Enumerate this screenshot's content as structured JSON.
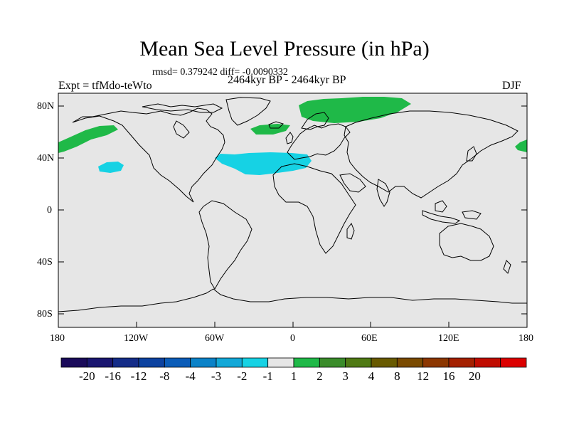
{
  "title": "Mean Sea Level Pressure (in hPa)",
  "subtitle": "rmsd= 0.379242 diff= -0.0090332",
  "left_label": "Expt = tfMdo-teWto",
  "center_label": "2464kyr BP - 2464kyr BP",
  "right_label": "DJF",
  "lat_ticks": [
    "80N",
    "40N",
    "0",
    "40S",
    "80S"
  ],
  "lon_ticks": [
    "180",
    "120W",
    "60W",
    "0",
    "60E",
    "120E",
    "180"
  ],
  "colorbar": {
    "colors": [
      "#1a0a5a",
      "#1a1670",
      "#142c88",
      "#0c42a0",
      "#0a5cb8",
      "#0a82c8",
      "#12a8d8",
      "#16d2e4",
      "#e6e6e6",
      "#1fb948",
      "#3a8c2a",
      "#4f7a14",
      "#685a00",
      "#7a4a00",
      "#8c3600",
      "#a42000",
      "#c00c00",
      "#dc0000"
    ],
    "labels": [
      "-20",
      "-16",
      "-12",
      "-8",
      "-4",
      "-3",
      "-2",
      "-1",
      "1",
      "2",
      "3",
      "4",
      "8",
      "12",
      "16",
      "20"
    ]
  },
  "colors": {
    "ocean": "#e6e6e6",
    "positive_anomaly": "#1fb948",
    "negative_anomaly": "#16d2e4",
    "coast": "#000000"
  }
}
